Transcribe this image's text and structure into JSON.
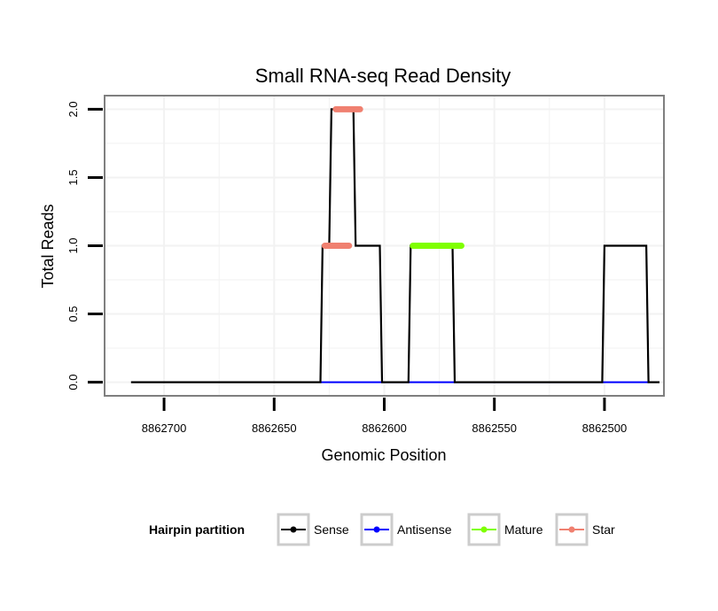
{
  "chart_data": {
    "type": "line",
    "title": "Small RNA-seq Read Density",
    "xlabel": "Genomic Position",
    "ylabel": "Total Reads",
    "x_reversed": true,
    "xlim": [
      8862727,
      8862473
    ],
    "ylim": [
      -0.1,
      2.1
    ],
    "x_ticks": [
      8862700,
      8862650,
      8862600,
      8862550,
      8862500
    ],
    "x_tick_labels": [
      "8862700",
      "8862650",
      "8862600",
      "8862550",
      "8862500"
    ],
    "y_ticks": [
      0,
      0.5,
      1,
      1.5,
      2
    ],
    "y_tick_labels": [
      "0.0",
      "0.5",
      "1.0",
      "1.5",
      "2.0"
    ],
    "grid": true,
    "series": [
      {
        "name": "Sense",
        "color": "#000000",
        "points": [
          [
            8862715,
            0
          ],
          [
            8862629,
            0
          ],
          [
            8862628,
            1
          ],
          [
            8862625,
            1
          ],
          [
            8862624,
            2
          ],
          [
            8862614,
            2
          ],
          [
            8862613,
            1
          ],
          [
            8862602,
            1
          ],
          [
            8862601,
            0
          ],
          [
            8862589,
            0
          ],
          [
            8862588,
            1
          ],
          [
            8862569,
            1
          ],
          [
            8862568,
            0
          ],
          [
            8862501,
            0
          ],
          [
            8862500,
            1
          ],
          [
            8862481,
            1
          ],
          [
            8862480,
            0
          ],
          [
            8862475,
            0
          ]
        ]
      },
      {
        "name": "Antisense",
        "color": "#0000ff",
        "segments": [
          [
            8862629,
            8862480
          ]
        ],
        "value": 0
      },
      {
        "name": "Mature",
        "color": "#7fff00",
        "segments": [
          [
            8862587,
            8862565
          ]
        ],
        "value": 1
      },
      {
        "name": "Star",
        "color": "#f08070",
        "segments": [
          [
            8862627,
            8862616
          ],
          [
            8862622,
            8862611
          ]
        ],
        "values": [
          1,
          2
        ]
      }
    ],
    "legend": {
      "title": "Hairpin partition",
      "position": "bottom",
      "entries": [
        "Sense",
        "Antisense",
        "Mature",
        "Star"
      ]
    }
  }
}
